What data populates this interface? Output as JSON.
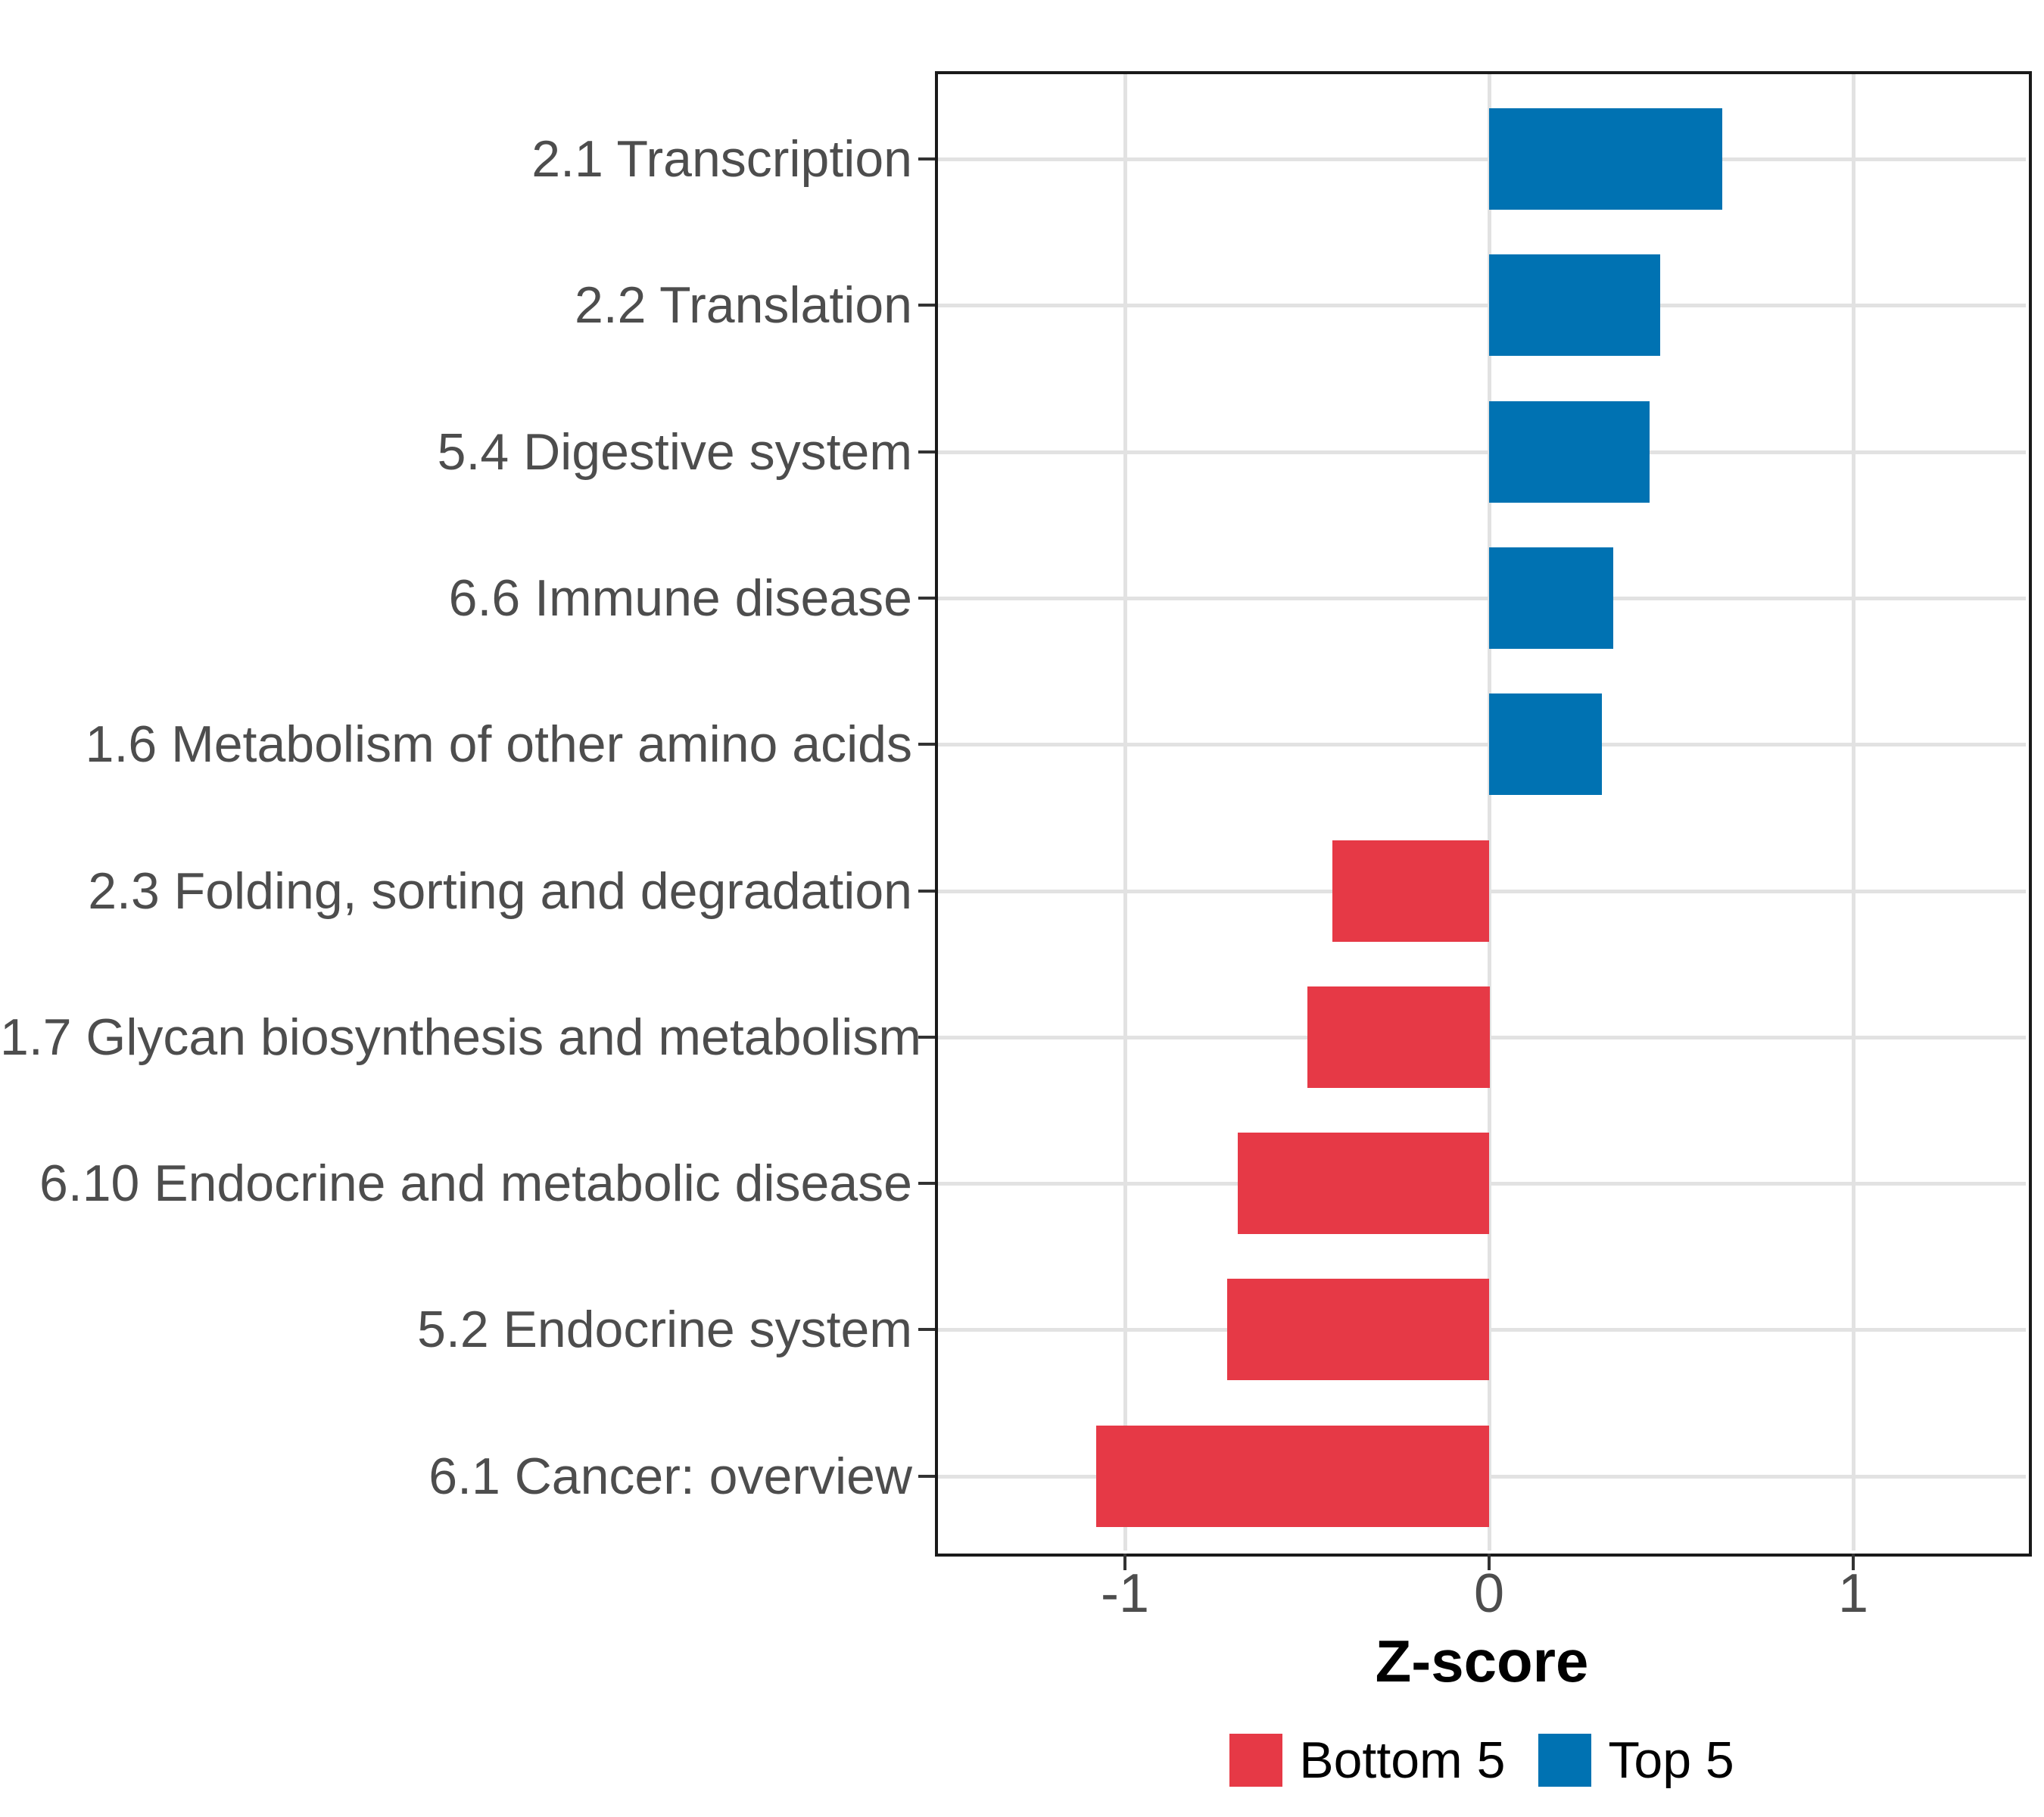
{
  "chart_data": {
    "type": "bar",
    "orientation": "horizontal",
    "xlabel": "Z-score",
    "ylabel": "",
    "categories": [
      "2.1 Transcription",
      "2.2 Translation",
      "5.4 Digestive system",
      "6.6 Immune disease",
      "1.6 Metabolism of other amino acids",
      "2.3 Folding, sorting and degradation",
      "1.7 Glycan biosynthesis and metabolism",
      "6.10 Endocrine and metabolic disease",
      "5.2 Endocrine system",
      "6.1 Cancer: overview"
    ],
    "values": [
      0.64,
      0.47,
      0.44,
      0.34,
      0.31,
      -0.43,
      -0.5,
      -0.69,
      -0.72,
      -1.08
    ],
    "groups": [
      "Top 5",
      "Top 5",
      "Top 5",
      "Top 5",
      "Top 5",
      "Bottom 5",
      "Bottom 5",
      "Bottom 5",
      "Bottom 5",
      "Bottom 5"
    ],
    "x_ticks": [
      {
        "value": -1,
        "label": "-1"
      },
      {
        "value": 0,
        "label": "0"
      },
      {
        "value": 1,
        "label": "1"
      }
    ],
    "xlim": [
      -1.51,
      1.47
    ],
    "grid": true,
    "legend": {
      "position": "bottom",
      "items": [
        {
          "label": "Bottom 5",
          "color": "#E63946"
        },
        {
          "label": "Top 5",
          "color": "#0072B2"
        }
      ]
    },
    "style_colors": {
      "axis_text": "#4d4d4d",
      "gridline": "#e2e2e2",
      "panel_border": "#1a1a1a"
    }
  }
}
